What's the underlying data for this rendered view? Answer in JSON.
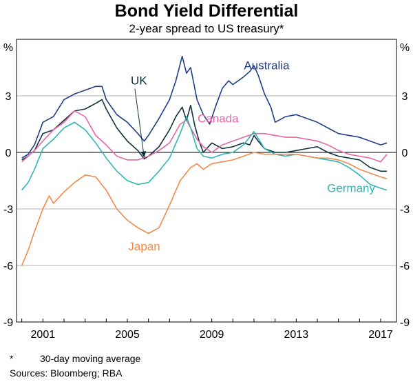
{
  "chart_data": {
    "type": "line",
    "title": "Bond Yield Differential",
    "subtitle": "2-year spread to US treasury*",
    "y_unit": "%",
    "ylim": [
      -9,
      6
    ],
    "yticks": [
      -9,
      -6,
      -3,
      0,
      3
    ],
    "ytick_labels": [
      "-9",
      "-6",
      "-3",
      "0",
      "3"
    ],
    "xlim": [
      1999.75,
      2017.75
    ],
    "xticks": [
      2001,
      2005,
      2009,
      2013,
      2017
    ],
    "xtick_labels": [
      "2001",
      "2005",
      "2009",
      "2013",
      "2017"
    ],
    "grid": true,
    "zero_line": true,
    "series": [
      {
        "name": "Australia",
        "color": "#1f3d8a",
        "x": [
          2000.0,
          2000.3,
          2000.6,
          2001.0,
          2001.5,
          2002.0,
          2002.5,
          2003.0,
          2003.5,
          2003.8,
          2004.0,
          2004.5,
          2005.0,
          2005.5,
          2005.8,
          2006.0,
          2006.5,
          2007.0,
          2007.3,
          2007.6,
          2007.8,
          2008.0,
          2008.3,
          2008.6,
          2008.9,
          2009.2,
          2009.5,
          2009.8,
          2010.0,
          2010.5,
          2010.8,
          2011.0,
          2011.2,
          2011.5,
          2011.8,
          2012.0,
          2012.5,
          2013.0,
          2013.5,
          2014.0,
          2014.5,
          2015.0,
          2015.5,
          2016.0,
          2016.5,
          2017.0,
          2017.3
        ],
        "y": [
          -0.3,
          -0.1,
          0.4,
          1.6,
          1.9,
          2.8,
          3.1,
          3.3,
          3.5,
          3.5,
          2.8,
          2.0,
          1.6,
          1.0,
          0.6,
          0.9,
          1.8,
          2.8,
          3.8,
          5.1,
          4.2,
          4.5,
          2.8,
          2.0,
          1.5,
          2.5,
          3.4,
          3.8,
          3.6,
          4.0,
          4.3,
          4.6,
          4.1,
          3.1,
          2.4,
          1.6,
          1.9,
          2.0,
          1.8,
          1.6,
          1.3,
          1.0,
          0.9,
          0.8,
          0.6,
          0.4,
          0.5
        ]
      },
      {
        "name": "UK",
        "color": "#0e2f3c",
        "x": [
          2000.0,
          2000.3,
          2000.6,
          2001.0,
          2001.5,
          2002.0,
          2002.5,
          2003.0,
          2003.5,
          2003.8,
          2004.0,
          2004.5,
          2005.0,
          2005.5,
          2005.8,
          2006.0,
          2006.5,
          2007.0,
          2007.3,
          2007.6,
          2007.8,
          2008.0,
          2008.2,
          2008.4,
          2008.6,
          2009.0,
          2009.5,
          2010.0,
          2010.5,
          2010.8,
          2011.0,
          2011.2,
          2011.5,
          2012.0,
          2012.5,
          2013.0,
          2013.5,
          2014.0,
          2014.5,
          2015.0,
          2015.5,
          2016.0,
          2016.5,
          2017.0,
          2017.3
        ],
        "y": [
          -0.4,
          -0.2,
          0.1,
          1.0,
          1.2,
          1.7,
          2.2,
          2.3,
          2.6,
          2.8,
          2.3,
          1.3,
          0.6,
          0.1,
          -0.35,
          -0.2,
          0.3,
          1.2,
          1.9,
          2.4,
          1.7,
          2.5,
          1.4,
          0.6,
          0.0,
          0.5,
          0.2,
          0.3,
          0.5,
          0.4,
          0.9,
          0.6,
          0.2,
          0.0,
          0.0,
          0.1,
          0.2,
          0.3,
          0.0,
          -0.2,
          -0.3,
          -0.4,
          -0.8,
          -1.0,
          -1.0
        ]
      },
      {
        "name": "Canada",
        "color": "#e366a6",
        "x": [
          2000.0,
          2000.3,
          2000.6,
          2001.0,
          2001.5,
          2002.0,
          2002.5,
          2003.0,
          2003.5,
          2004.0,
          2004.5,
          2005.0,
          2005.5,
          2006.0,
          2006.5,
          2007.0,
          2007.5,
          2007.8,
          2008.0,
          2008.3,
          2008.6,
          2009.0,
          2009.5,
          2010.0,
          2010.5,
          2011.0,
          2011.5,
          2012.0,
          2012.5,
          2013.0,
          2013.5,
          2014.0,
          2014.5,
          2015.0,
          2015.5,
          2016.0,
          2016.5,
          2017.0,
          2017.3
        ],
        "y": [
          -0.5,
          -0.2,
          0.1,
          0.6,
          1.2,
          1.6,
          2.2,
          1.9,
          0.9,
          0.4,
          -0.2,
          -0.4,
          -0.4,
          -0.2,
          0.1,
          0.5,
          1.5,
          1.7,
          1.3,
          0.7,
          0.3,
          0.0,
          0.4,
          0.6,
          0.8,
          1.0,
          1.0,
          0.9,
          0.8,
          0.8,
          0.7,
          0.6,
          0.4,
          0.1,
          -0.1,
          -0.2,
          -0.3,
          -0.5,
          -0.1
        ]
      },
      {
        "name": "Germany",
        "color": "#2fb5b5",
        "x": [
          2000.0,
          2000.3,
          2000.6,
          2001.0,
          2001.5,
          2002.0,
          2002.5,
          2003.0,
          2003.5,
          2004.0,
          2004.5,
          2005.0,
          2005.5,
          2006.0,
          2006.5,
          2007.0,
          2007.5,
          2007.8,
          2008.0,
          2008.3,
          2008.6,
          2009.0,
          2009.5,
          2010.0,
          2010.5,
          2011.0,
          2011.5,
          2012.0,
          2012.5,
          2013.0,
          2013.5,
          2014.0,
          2014.5,
          2015.0,
          2015.5,
          2016.0,
          2016.5,
          2017.0,
          2017.3
        ],
        "y": [
          -2.0,
          -1.6,
          -0.9,
          0.2,
          0.7,
          1.3,
          1.6,
          1.2,
          0.5,
          -0.3,
          -1.0,
          -1.5,
          -1.7,
          -1.6,
          -1.0,
          -0.3,
          1.0,
          1.9,
          1.3,
          0.2,
          -0.2,
          -0.3,
          -0.1,
          0.0,
          0.4,
          1.1,
          0.2,
          -0.1,
          -0.2,
          -0.1,
          -0.2,
          -0.3,
          -0.4,
          -0.5,
          -0.8,
          -1.2,
          -1.7,
          -1.9,
          -2.0
        ]
      },
      {
        "name": "Japan",
        "color": "#f08a4b",
        "x": [
          2000.0,
          2000.3,
          2000.6,
          2001.0,
          2001.3,
          2001.5,
          2002.0,
          2002.5,
          2003.0,
          2003.5,
          2004.0,
          2004.5,
          2005.0,
          2005.5,
          2006.0,
          2006.5,
          2007.0,
          2007.5,
          2008.0,
          2008.3,
          2008.6,
          2009.0,
          2009.5,
          2010.0,
          2010.5,
          2011.0,
          2011.5,
          2012.0,
          2012.5,
          2013.0,
          2013.5,
          2014.0,
          2014.5,
          2015.0,
          2015.5,
          2016.0,
          2016.5,
          2017.0,
          2017.3
        ],
        "y": [
          -6.0,
          -5.2,
          -4.2,
          -3.0,
          -2.3,
          -2.7,
          -2.1,
          -1.6,
          -1.2,
          -1.3,
          -2.0,
          -3.0,
          -3.6,
          -4.0,
          -4.3,
          -4.0,
          -2.8,
          -1.5,
          -0.8,
          -0.6,
          -0.9,
          -0.6,
          -0.5,
          -0.4,
          -0.2,
          0.0,
          -0.1,
          -0.1,
          -0.1,
          -0.1,
          -0.2,
          -0.3,
          -0.3,
          -0.4,
          -0.6,
          -0.9,
          -1.1,
          -1.3,
          -1.4
        ]
      }
    ],
    "labels": [
      {
        "series": "Australia",
        "text": "Australia",
        "x": 2011.6,
        "y": 4.4
      },
      {
        "series": "UK",
        "text": "UK",
        "x": 2005.55,
        "y": 3.6
      },
      {
        "series": "Canada",
        "text": "Canada",
        "x": 2009.3,
        "y": 1.6
      },
      {
        "series": "Germany",
        "text": "Germany",
        "x": 2015.6,
        "y": -2.1
      },
      {
        "series": "Japan",
        "text": "Japan",
        "x": 2005.8,
        "y": -5.2
      }
    ],
    "footnotes": [
      "*",
      "30-day moving average",
      "Sources: Bloomberg; RBA"
    ]
  }
}
